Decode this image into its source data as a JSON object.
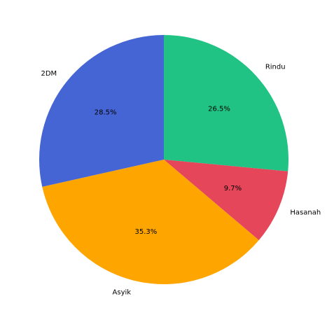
{
  "chart_data": {
    "type": "pie",
    "title": "",
    "start_angle_deg": 90,
    "direction": "clockwise",
    "slices": [
      {
        "label": "Rindu",
        "value": 26.5,
        "pct_label": "26.5%",
        "color": "#20c383"
      },
      {
        "label": "Hasanah",
        "value": 9.7,
        "pct_label": "9.7%",
        "color": "#e5465a"
      },
      {
        "label": "Asyik",
        "value": 35.3,
        "pct_label": "35.3%",
        "color": "#ffa500"
      },
      {
        "label": "2DM",
        "value": 28.5,
        "pct_label": "28.5%",
        "color": "#4565d4"
      }
    ]
  }
}
